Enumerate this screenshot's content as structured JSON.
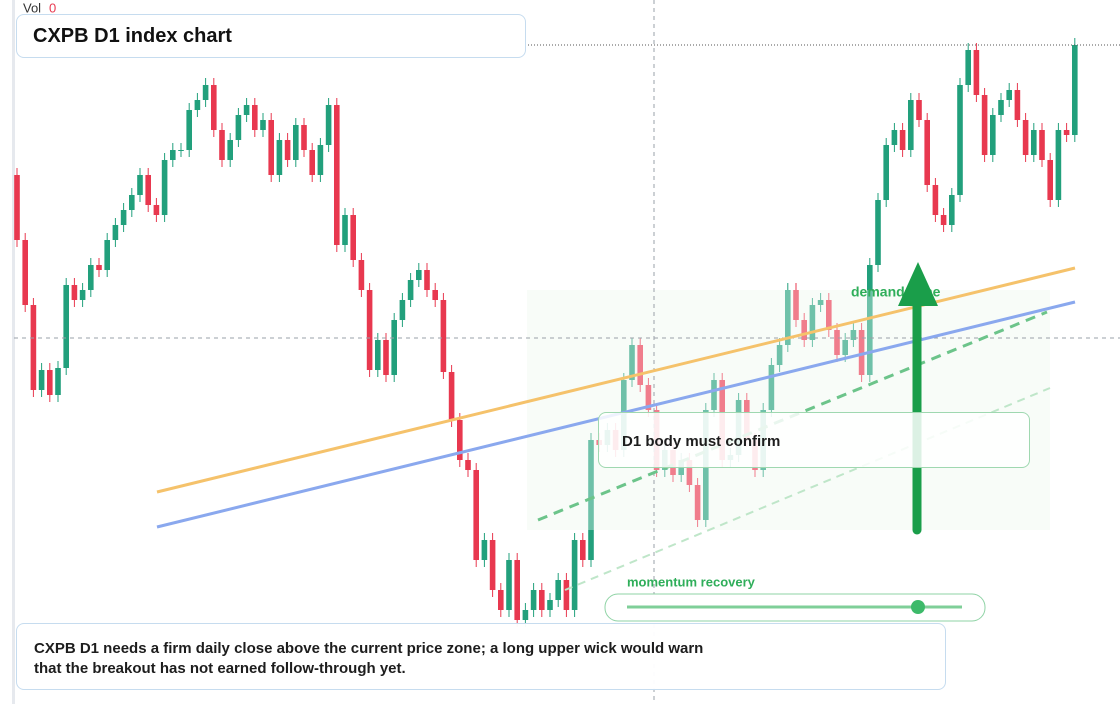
{
  "chart_data": {
    "type": "candlestick",
    "title": "CXPB D1 index chart",
    "volume_label": "Vol",
    "volume_value": 0,
    "up_color": "#22a07c",
    "down_color": "#e8384f",
    "ylim": [
      0,
      704
    ],
    "open": [
      529,
      464,
      399,
      314,
      334,
      309,
      336,
      419,
      404,
      414,
      439,
      434,
      464,
      479,
      494,
      509,
      529,
      499,
      489,
      544,
      554,
      554,
      594,
      604,
      619,
      574,
      544,
      564,
      589,
      599,
      574,
      584,
      529,
      564,
      544,
      579,
      554,
      529,
      559,
      599,
      459,
      489,
      444,
      414,
      334,
      364,
      329,
      384,
      404,
      424,
      434,
      414,
      404,
      332,
      284,
      244,
      234,
      144,
      164,
      114,
      94,
      144,
      84,
      94,
      114,
      94,
      104,
      124,
      94,
      164,
      144,
      264,
      259,
      274,
      254,
      324,
      359,
      319,
      294,
      234,
      254,
      229,
      244,
      219,
      184,
      294,
      324,
      244,
      249,
      304,
      264,
      234,
      294,
      339,
      359,
      414,
      384,
      364,
      399,
      404,
      374,
      349,
      364,
      374,
      329,
      439,
      504,
      559,
      574,
      554,
      604,
      584,
      519,
      489,
      479,
      509,
      619,
      654,
      609,
      549,
      589,
      604,
      614,
      584,
      549,
      574,
      544,
      504,
      574,
      569
    ],
    "high": [
      536,
      471,
      406,
      341,
      341,
      343,
      426,
      426,
      421,
      446,
      446,
      471,
      486,
      501,
      516,
      536,
      536,
      506,
      551,
      561,
      561,
      601,
      611,
      626,
      626,
      581,
      571,
      596,
      606,
      606,
      591,
      591,
      571,
      571,
      586,
      586,
      561,
      566,
      606,
      606,
      496,
      496,
      451,
      421,
      371,
      371,
      391,
      411,
      431,
      441,
      441,
      421,
      411,
      339,
      291,
      251,
      241,
      171,
      171,
      121,
      151,
      151,
      101,
      121,
      121,
      111,
      131,
      131,
      171,
      171,
      271,
      271,
      281,
      281,
      331,
      366,
      366,
      326,
      301,
      261,
      261,
      251,
      251,
      226,
      301,
      331,
      331,
      256,
      311,
      311,
      271,
      301,
      346,
      366,
      421,
      421,
      391,
      406,
      411,
      411,
      381,
      371,
      381,
      381,
      446,
      511,
      566,
      581,
      581,
      611,
      611,
      591,
      526,
      496,
      516,
      626,
      661,
      661,
      616,
      596,
      611,
      621,
      621,
      591,
      581,
      581,
      551,
      581,
      581,
      666
    ],
    "low": [
      457,
      392,
      307,
      307,
      302,
      302,
      329,
      397,
      397,
      407,
      427,
      427,
      457,
      472,
      487,
      502,
      492,
      482,
      482,
      537,
      547,
      547,
      587,
      597,
      567,
      537,
      537,
      557,
      582,
      567,
      567,
      522,
      522,
      537,
      537,
      547,
      522,
      522,
      552,
      452,
      452,
      437,
      407,
      327,
      327,
      322,
      322,
      377,
      397,
      417,
      407,
      397,
      325,
      277,
      237,
      227,
      137,
      137,
      107,
      87,
      87,
      77,
      77,
      87,
      87,
      87,
      97,
      87,
      87,
      137,
      137,
      252,
      252,
      247,
      247,
      317,
      312,
      287,
      227,
      227,
      222,
      222,
      212,
      177,
      177,
      287,
      237,
      237,
      242,
      257,
      227,
      227,
      287,
      332,
      352,
      377,
      357,
      357,
      392,
      367,
      342,
      342,
      357,
      322,
      322,
      432,
      497,
      552,
      547,
      547,
      577,
      512,
      482,
      472,
      472,
      502,
      612,
      602,
      542,
      542,
      582,
      597,
      577,
      542,
      542,
      537,
      497,
      497,
      562,
      562
    ],
    "close": [
      464,
      399,
      314,
      334,
      309,
      336,
      419,
      404,
      414,
      439,
      434,
      464,
      479,
      494,
      509,
      529,
      499,
      489,
      544,
      554,
      554,
      594,
      604,
      619,
      574,
      544,
      564,
      589,
      599,
      574,
      584,
      529,
      564,
      544,
      579,
      554,
      529,
      559,
      599,
      459,
      489,
      444,
      414,
      334,
      364,
      329,
      384,
      404,
      424,
      434,
      414,
      404,
      332,
      284,
      244,
      234,
      144,
      164,
      114,
      94,
      144,
      84,
      94,
      114,
      94,
      104,
      124,
      94,
      164,
      144,
      264,
      259,
      274,
      254,
      324,
      359,
      319,
      294,
      234,
      254,
      229,
      244,
      219,
      184,
      294,
      324,
      244,
      249,
      304,
      264,
      234,
      294,
      339,
      359,
      414,
      384,
      364,
      399,
      404,
      374,
      349,
      364,
      374,
      329,
      439,
      504,
      559,
      574,
      554,
      604,
      584,
      519,
      489,
      479,
      509,
      619,
      654,
      609,
      549,
      589,
      604,
      614,
      584,
      549,
      574,
      544,
      504,
      574,
      569,
      659
    ],
    "annotations": {
      "zone": "demand zone",
      "confirm": "D1 body must confirm",
      "slider": "momentum recovery",
      "note": "CXPB D1 needs a firm daily close above the current price zone; a long upper wick would warn that the breakout has not earned follow-through yet."
    }
  }
}
